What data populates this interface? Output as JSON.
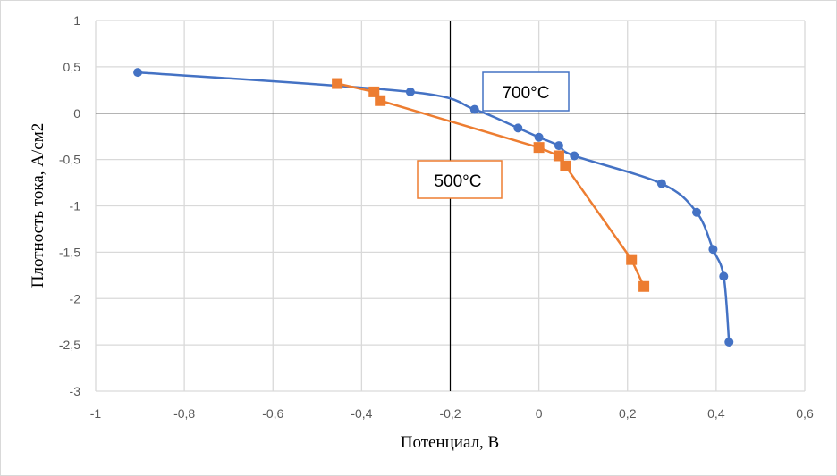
{
  "chart_data": {
    "type": "scatter",
    "xlabel": "Потенциал, В",
    "ylabel": "Плотность тока, А/см2",
    "xlim": [
      -1,
      0.6
    ],
    "ylim": [
      -3,
      1
    ],
    "x_ticks": [
      "-1",
      "-0,8",
      "-0,6",
      "-0,4",
      "-0,2",
      "0",
      "0,2",
      "0,4",
      "0,6"
    ],
    "y_ticks": [
      "1",
      "0,5",
      "0",
      "-0,5",
      "-1",
      "-1,5",
      "-2",
      "-2,5",
      "-3"
    ],
    "grid": true,
    "series": [
      {
        "name": "700°C",
        "color": "#4472c4",
        "marker": "circle",
        "smooth": true,
        "x": [
          -0.905,
          -0.29,
          -0.145,
          -0.047,
          0.0,
          0.045,
          0.08,
          0.277,
          0.356,
          0.393,
          0.417,
          0.429
        ],
        "y": [
          0.44,
          0.23,
          0.04,
          -0.16,
          -0.26,
          -0.35,
          -0.46,
          -0.76,
          -1.07,
          -1.47,
          -1.76,
          -2.47
        ]
      },
      {
        "name": "500°C",
        "color": "#ed7d31",
        "marker": "square",
        "smooth": false,
        "x": [
          -0.455,
          -0.372,
          -0.358,
          0.0,
          0.045,
          0.06,
          0.209,
          0.237
        ],
        "y": [
          0.32,
          0.23,
          0.135,
          -0.37,
          -0.46,
          -0.57,
          -1.58,
          -1.87
        ]
      }
    ]
  }
}
